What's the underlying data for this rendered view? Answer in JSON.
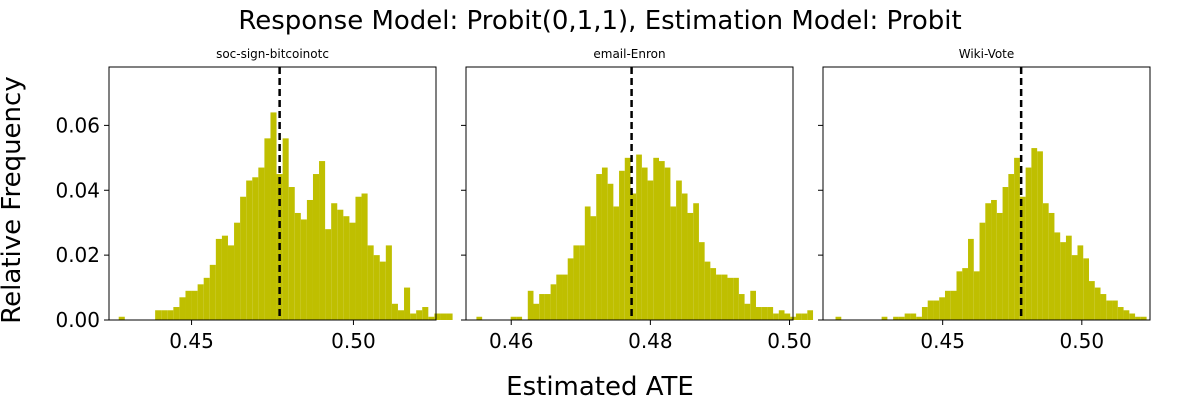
{
  "figure": {
    "suptitle": "Response Model: Probit(0,1,1), Estimation Model: Probit",
    "xlabel": "Estimated ATE",
    "ylabel": "Relative Frequency",
    "bar_color": "#bfbf00",
    "vline_color": "#000000"
  },
  "chart_data": [
    {
      "type": "bar",
      "title": "soc-sign-bitcoinotc",
      "xlim": [
        0.4245,
        0.5255
      ],
      "ylim": [
        0,
        0.078
      ],
      "xticks": [
        0.45,
        0.5
      ],
      "xtick_labels": [
        "0.45",
        "0.50"
      ],
      "yticks": [
        0,
        0.02,
        0.04,
        0.06
      ],
      "ytick_labels": [
        "0.00",
        "0.02",
        "0.04",
        "0.06"
      ],
      "bin_start": 0.4275,
      "bin_width": 0.001875,
      "values": [
        0.001,
        0,
        0,
        0,
        0,
        0,
        0.003,
        0.003,
        0.003,
        0.004,
        0.007,
        0.009,
        0.009,
        0.011,
        0.013,
        0.017,
        0.025,
        0.026,
        0.023,
        0.03,
        0.038,
        0.043,
        0.044,
        0.047,
        0.056,
        0.064,
        0.045,
        0.056,
        0.041,
        0.033,
        0.031,
        0.037,
        0.045,
        0.049,
        0.028,
        0.036,
        0.034,
        0.032,
        0.03,
        0.038,
        0.039,
        0.023,
        0.02,
        0.018,
        0.023,
        0.005,
        0.003,
        0.01,
        0.002,
        0.003,
        0.004,
        0.001,
        0.002,
        0.002,
        0.002
      ],
      "mean": 0.4772
    },
    {
      "type": "bar",
      "title": "email-Enron",
      "xlim": [
        0.4535,
        0.5005
      ],
      "ylim": [
        0,
        0.078
      ],
      "xticks": [
        0.46,
        0.48,
        0.5
      ],
      "xtick_labels": [
        "0.46",
        "0.48",
        "0.50"
      ],
      "yticks": [
        0,
        0.02,
        0.04,
        0.06
      ],
      "ytick_labels": [],
      "bin_start": 0.455,
      "bin_width": 0.00082,
      "values": [
        0.001,
        0,
        0,
        0,
        0,
        0,
        0.001,
        0.001,
        0,
        0.009,
        0.005,
        0.008,
        0.008,
        0.011,
        0.014,
        0.014,
        0.019,
        0.023,
        0.023,
        0.035,
        0.032,
        0.045,
        0.047,
        0.042,
        0.035,
        0.046,
        0.05,
        0.039,
        0.051,
        0.047,
        0.043,
        0.05,
        0.049,
        0.047,
        0.035,
        0.043,
        0.039,
        0.033,
        0.036,
        0.024,
        0.018,
        0.016,
        0.014,
        0.014,
        0.013,
        0.013,
        0.008,
        0.005,
        0.009,
        0.004,
        0.004,
        0.004,
        0.002,
        0.003,
        0.002,
        0.001,
        0.002,
        0.002,
        0.003
      ],
      "mean": 0.4773
    },
    {
      "type": "bar",
      "title": "Wiki-Vote",
      "xlim": [
        0.407,
        0.5245
      ],
      "ylim": [
        0,
        0.078
      ],
      "xticks": [
        0.45,
        0.5
      ],
      "xtick_labels": [
        "0.45",
        "0.50"
      ],
      "yticks": [
        0,
        0.02,
        0.04,
        0.06
      ],
      "ytick_labels": [],
      "bin_start": 0.4115,
      "bin_width": 0.00207,
      "values": [
        0.001,
        0,
        0,
        0,
        0,
        0,
        0,
        0,
        0.001,
        0,
        0.001,
        0.001,
        0.002,
        0.002,
        0.001,
        0.004,
        0.006,
        0.006,
        0.007,
        0.009,
        0.009,
        0.015,
        0.016,
        0.025,
        0.015,
        0.03,
        0.036,
        0.037,
        0.033,
        0.041,
        0.045,
        0.05,
        0.038,
        0.047,
        0.053,
        0.052,
        0.036,
        0.033,
        0.027,
        0.024,
        0.026,
        0.02,
        0.023,
        0.019,
        0.012,
        0.01,
        0.008,
        0.006,
        0.006,
        0.004,
        0.003,
        0.002,
        0.001,
        0.001
      ],
      "mean": 0.4782
    }
  ]
}
